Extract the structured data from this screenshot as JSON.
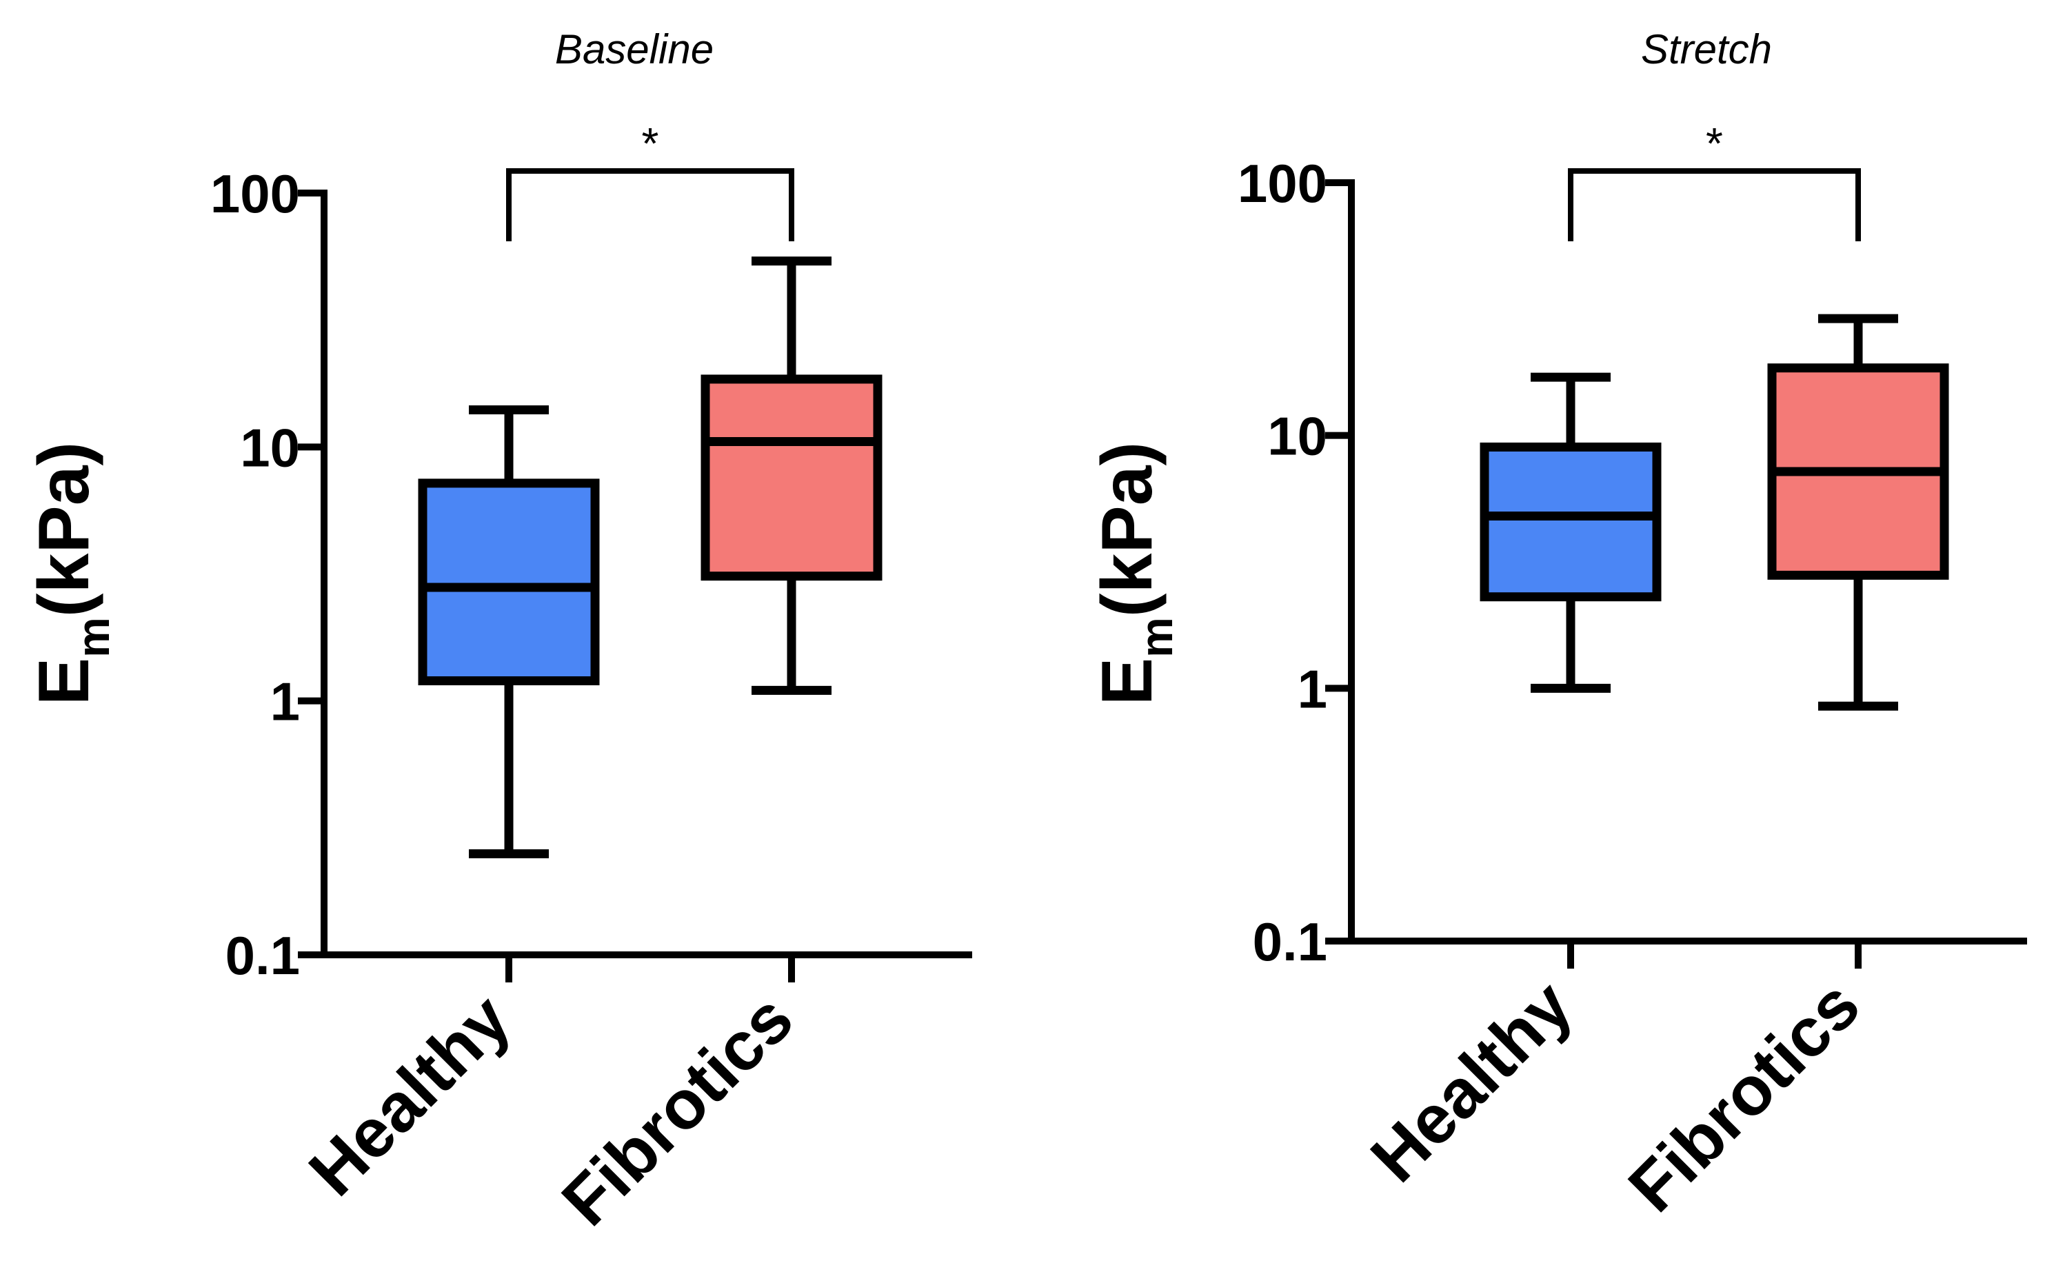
{
  "chart_data": [
    {
      "type": "box",
      "title": "Baseline",
      "ylabel": "E",
      "ylabel_subscript": "m",
      "ylabel_unit": "(kPa)",
      "yscale": "log",
      "ylim": [
        0.1,
        100
      ],
      "yticks": [
        0.1,
        1,
        10,
        100
      ],
      "ytick_labels": [
        "0.1",
        "1",
        "10",
        "100"
      ],
      "categories": [
        "Healthy",
        "Fibrotics"
      ],
      "colors": [
        "#4b86f5",
        "#f47a77"
      ],
      "boxes": [
        {
          "name": "Healthy",
          "whisker_low": 0.25,
          "q1": 1.2,
          "median": 2.8,
          "q3": 7.2,
          "whisker_high": 14
        },
        {
          "name": "Fibrotics",
          "whisker_low": 1.1,
          "q1": 3.1,
          "median": 10.5,
          "q3": 18.5,
          "whisker_high": 54
        }
      ],
      "significance": {
        "between": [
          "Healthy",
          "Fibrotics"
        ],
        "label": "*"
      }
    },
    {
      "type": "box",
      "title": "Stretch",
      "ylabel": "E",
      "ylabel_subscript": "m",
      "ylabel_unit": "(kPa)",
      "yscale": "log",
      "ylim": [
        0.1,
        100
      ],
      "yticks": [
        0.1,
        1,
        10,
        100
      ],
      "ytick_labels": [
        "0.1",
        "1",
        "10",
        "100"
      ],
      "categories": [
        "Healthy",
        "Fibrotics"
      ],
      "colors": [
        "#4b86f5",
        "#f47a77"
      ],
      "boxes": [
        {
          "name": "Healthy",
          "whisker_low": 1.0,
          "q1": 2.3,
          "median": 4.8,
          "q3": 9.0,
          "whisker_high": 17
        },
        {
          "name": "Fibrotics",
          "whisker_low": 0.85,
          "q1": 2.8,
          "median": 7.2,
          "q3": 18.5,
          "whisker_high": 29
        }
      ],
      "significance": {
        "between": [
          "Healthy",
          "Fibrotics"
        ],
        "label": "*"
      }
    }
  ]
}
